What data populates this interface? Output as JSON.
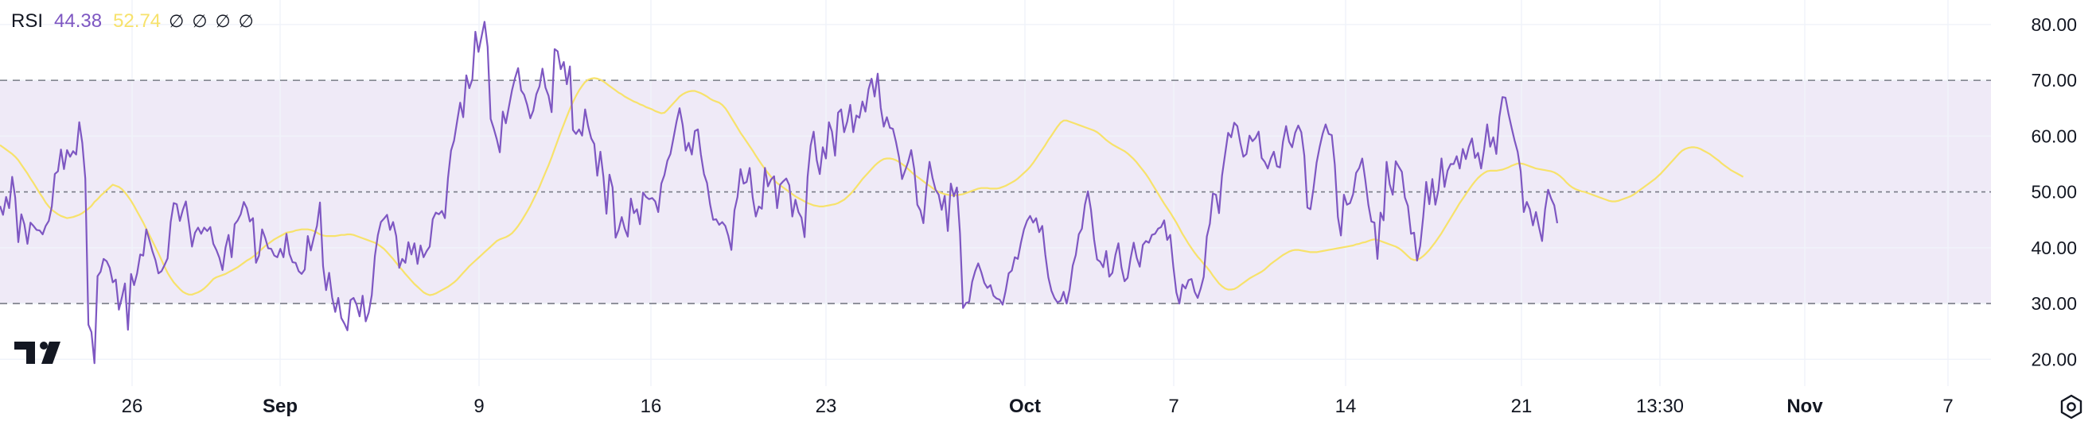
{
  "legend": {
    "name": "RSI",
    "value_rsi": "44.38",
    "value_ma": "52.74",
    "na": [
      "∅",
      "∅",
      "∅",
      "∅"
    ]
  },
  "icons": {
    "logo": "tradingview-logo-icon",
    "settings": "settings-hexagon-icon"
  },
  "colors": {
    "rsi": "#7e57c2",
    "ma": "#f7e26b",
    "band": "#efeaf7",
    "grid": "#f0f3fa",
    "dash": "#787b86",
    "text": "#131722"
  },
  "chart_data": {
    "type": "line",
    "series": [
      {
        "key": "rsi",
        "values": [
          47.5,
          45.9,
          49.1,
          47.1,
          52.7,
          49.0,
          41.0,
          46.0,
          44.2,
          40.7,
          44.5,
          43.9,
          43.2,
          43.1,
          42.4,
          43.9,
          44.8,
          47.4,
          53.2,
          53.7,
          57.6,
          54.1,
          57.5,
          56.3,
          57.3,
          56.7,
          62.5,
          58.8,
          52.4,
          26.2,
          24.9,
          19.3,
          34.9,
          35.7,
          38.0,
          37.6,
          36.4,
          33.8,
          34.3,
          28.9,
          31.1,
          33.6,
          25.3,
          35.3,
          33.3,
          35.4,
          38.8,
          38.6,
          43.3,
          41.4,
          39.4,
          37.8,
          35.4,
          35.8,
          36.9,
          38.1,
          44.6,
          48.0,
          47.8,
          44.8,
          46.8,
          48.3,
          44.4,
          40.2,
          42.7,
          43.6,
          42.5,
          43.6,
          43.0,
          43.7,
          40.7,
          39.6,
          38.2,
          36.0,
          40.0,
          42.3,
          38.3,
          44.2,
          44.9,
          46.0,
          48.2,
          47.1,
          44.7,
          45.3,
          37.3,
          38.6,
          43.3,
          41.8,
          39.9,
          39.8,
          38.6,
          38.3,
          39.8,
          38.3,
          42.5,
          38.9,
          37.4,
          37.3,
          35.8,
          35.3,
          36.1,
          42.1,
          39.5,
          41.9,
          43.9,
          48.1,
          36.7,
          32.4,
          35.5,
          31.1,
          28.5,
          31.0,
          27.4,
          26.4,
          25.2,
          30.6,
          31.0,
          29.8,
          27.7,
          31.4,
          26.8,
          28.4,
          31.5,
          38.5,
          42.3,
          44.6,
          45.2,
          45.9,
          43.2,
          44.6,
          42.1,
          36.4,
          38.0,
          37.3,
          41.0,
          38.8,
          40.8,
          37.1,
          40.4,
          38.3,
          39.4,
          40.2,
          45.1,
          46.3,
          46.0,
          46.6,
          45.3,
          52.5,
          57.4,
          59.2,
          62.7,
          66.0,
          63.4,
          70.9,
          68.6,
          70.2,
          78.7,
          75.1,
          77.8,
          80.5,
          76.0,
          63.1,
          61.4,
          59.5,
          57.1,
          64.4,
          62.3,
          65.3,
          68.2,
          70.4,
          72.2,
          68.2,
          67.4,
          65.6,
          63.2,
          64.6,
          67.5,
          68.9,
          72.1,
          68.7,
          67.2,
          64.3,
          75.6,
          75.2,
          72.0,
          73.3,
          69.3,
          72.5,
          61.1,
          60.4,
          61.2,
          60.1,
          64.8,
          61.8,
          59.6,
          58.6,
          52.9,
          57.2,
          52.7,
          46.1,
          53.1,
          50.8,
          41.8,
          43.2,
          45.5,
          43.4,
          42.0,
          48.8,
          46.2,
          46.9,
          44.2,
          49.9,
          49.1,
          48.7,
          48.9,
          48.3,
          46.4,
          51.5,
          53.0,
          55.6,
          56.8,
          59.7,
          62.6,
          65.0,
          62.0,
          57.4,
          58.8,
          56.7,
          60.9,
          61.2,
          56.7,
          53.2,
          51.6,
          47.8,
          45.0,
          45.1,
          44.1,
          44.6,
          43.9,
          42.1,
          39.6,
          46.7,
          49.1,
          54.1,
          51.5,
          51.8,
          54.3,
          49.0,
          45.6,
          47.4,
          47.0,
          54.3,
          51.0,
          52.2,
          52.8,
          47.1,
          51.3,
          51.9,
          52.4,
          51.2,
          45.6,
          48.6,
          46.4,
          45.4,
          41.9,
          52.7,
          58.3,
          60.8,
          55.7,
          53.2,
          58.0,
          56.0,
          62.5,
          60.8,
          56.5,
          64.2,
          64.8,
          60.7,
          62.6,
          65.6,
          60.7,
          63.7,
          63.3,
          66.2,
          64.4,
          68.4,
          70.3,
          67.1,
          71.2,
          65.1,
          61.7,
          63.4,
          61.5,
          61.3,
          59.0,
          56.2,
          52.3,
          53.8,
          55.4,
          57.5,
          54.1,
          47.7,
          46.7,
          44.4,
          50.8,
          55.4,
          52.5,
          50.4,
          49.5,
          46.8,
          49.3,
          43.0,
          51.5,
          49.2,
          50.8,
          42.6,
          29.2,
          30.1,
          30.3,
          33.9,
          35.8,
          37.2,
          35.6,
          33.7,
          32.8,
          33.3,
          31.4,
          30.9,
          30.7,
          29.8,
          32.3,
          35.4,
          35.9,
          38.3,
          38.0,
          40.9,
          43.3,
          44.8,
          45.7,
          44.5,
          45.3,
          42.8,
          43.9,
          38.8,
          34.7,
          32.3,
          31.0,
          30.2,
          30.5,
          32.1,
          30.0,
          32.5,
          36.8,
          38.7,
          42.4,
          43.4,
          47.7,
          50.1,
          46.8,
          41.5,
          37.9,
          37.5,
          36.5,
          39.4,
          34.8,
          35.5,
          38.7,
          40.8,
          36.5,
          34.0,
          34.6,
          38.1,
          40.9,
          38.2,
          36.6,
          40.5,
          41.2,
          40.9,
          42.3,
          42.5,
          43.4,
          43.7,
          44.9,
          41.4,
          42.3,
          36.6,
          32.0,
          30.0,
          33.4,
          32.7,
          34.2,
          34.4,
          32.1,
          31.0,
          32.7,
          34.8,
          42.0,
          44.3,
          49.7,
          49.5,
          46.2,
          52.9,
          56.8,
          60.6,
          59.8,
          62.4,
          61.8,
          58.8,
          56.3,
          56.8,
          60.1,
          59.1,
          59.7,
          60.8,
          56.1,
          55.4,
          54.2,
          56.0,
          57.2,
          54.6,
          54.4,
          59.0,
          61.8,
          59.0,
          58.0,
          60.6,
          61.9,
          60.7,
          56.5,
          47.2,
          46.9,
          50.6,
          55.2,
          58.0,
          60.4,
          62.1,
          60.4,
          60.2,
          54.9,
          45.5,
          42.2,
          49.5,
          47.7,
          48.0,
          49.6,
          53.4,
          54.3,
          56.0,
          52.2,
          47.7,
          44.7,
          44.5,
          38.0,
          46.3,
          44.9,
          55.4,
          51.4,
          49.5,
          55.5,
          54.5,
          53.6,
          49.0,
          47.5,
          42.5,
          42.7,
          37.7,
          40.3,
          45.5,
          51.8,
          47.8,
          52.3,
          47.7,
          50.3,
          56.0,
          50.9,
          53.8,
          55.0,
          55.0,
          56.4,
          54.2,
          57.7,
          55.9,
          58.1,
          59.6,
          56.1,
          57.0,
          54.2,
          57.7,
          62.1,
          58.1,
          59.8,
          56.8,
          63.4,
          67.0,
          66.9,
          64.0,
          61.5,
          59.2,
          57.2,
          53.7,
          46.4,
          48.2,
          46.9,
          44.0,
          46.4,
          43.7,
          41.2,
          46.9,
          50.4,
          48.8,
          47.6,
          44.4
        ]
      },
      {
        "key": "ma",
        "values": [
          58.4,
          58.0,
          57.6,
          57.2,
          56.8,
          56.3,
          55.7,
          54.9,
          54.1,
          53.3,
          52.4,
          51.6,
          50.7,
          49.8,
          49.0,
          48.1,
          47.4,
          46.8,
          46.4,
          46.0,
          45.7,
          45.5,
          45.3,
          45.4,
          45.5,
          45.7,
          45.9,
          46.2,
          46.6,
          47.0,
          47.5,
          48.2,
          48.7,
          49.3,
          49.8,
          50.3,
          50.8,
          51.3,
          51.1,
          50.9,
          50.5,
          49.9,
          49.2,
          48.4,
          47.5,
          46.5,
          45.5,
          44.5,
          43.4,
          42.3,
          41.2,
          40.1,
          39.0,
          37.8,
          36.6,
          35.5,
          34.6,
          33.8,
          33.2,
          32.6,
          32.1,
          31.8,
          31.6,
          31.6,
          31.8,
          32.0,
          32.3,
          32.7,
          33.2,
          33.8,
          34.4,
          34.7,
          34.9,
          35.1,
          35.3,
          35.6,
          35.9,
          36.2,
          36.5,
          36.9,
          37.3,
          37.7,
          38.0,
          38.4,
          38.8,
          39.3,
          39.8,
          40.3,
          40.7,
          41.1,
          41.5,
          41.8,
          42.1,
          42.4,
          42.7,
          42.8,
          42.9,
          43.1,
          43.2,
          43.3,
          43.3,
          43.3,
          43.2,
          43.0,
          42.7,
          42.4,
          42.2,
          42.1,
          42.1,
          42.1,
          42.1,
          42.2,
          42.3,
          42.3,
          42.4,
          42.4,
          42.3,
          42.1,
          41.9,
          41.7,
          41.5,
          41.3,
          41.1,
          40.9,
          40.6,
          40.2,
          39.8,
          39.2,
          38.6,
          38.0,
          37.3,
          36.6,
          36.0,
          35.3,
          34.7,
          34.1,
          33.5,
          33.0,
          32.5,
          32.0,
          31.7,
          31.5,
          31.6,
          31.8,
          32.1,
          32.4,
          32.7,
          33.0,
          33.4,
          33.8,
          34.3,
          34.9,
          35.5,
          36.1,
          36.7,
          37.2,
          37.7,
          38.2,
          38.7,
          39.2,
          39.7,
          40.2,
          40.7,
          41.2,
          41.5,
          41.7,
          41.9,
          42.2,
          42.6,
          43.2,
          43.9,
          44.7,
          45.6,
          46.5,
          47.5,
          48.6,
          49.7,
          50.9,
          52.2,
          53.5,
          54.8,
          56.2,
          57.7,
          59.2,
          60.7,
          62.1,
          63.5,
          64.9,
          66.1,
          67.2,
          68.2,
          69.0,
          69.7,
          70.1,
          70.3,
          70.4,
          70.3,
          70.1,
          69.8,
          69.4,
          69.0,
          68.6,
          68.2,
          67.8,
          67.5,
          67.1,
          66.8,
          66.5,
          66.2,
          66.0,
          65.7,
          65.5,
          65.2,
          65.0,
          64.8,
          64.5,
          64.3,
          64.1,
          64.2,
          64.7,
          65.3,
          65.9,
          66.5,
          67.1,
          67.5,
          67.8,
          68.0,
          68.1,
          68.1,
          67.9,
          67.7,
          67.4,
          67.1,
          66.7,
          66.4,
          66.2,
          66.0,
          65.6,
          65.0,
          64.2,
          63.3,
          62.4,
          61.5,
          60.6,
          59.8,
          59.0,
          58.2,
          57.4,
          56.5,
          55.7,
          54.9,
          54.1,
          53.4,
          52.7,
          52.1,
          51.6,
          51.2,
          50.8,
          50.4,
          50.0,
          49.6,
          49.2,
          48.9,
          48.6,
          48.3,
          48.0,
          47.8,
          47.6,
          47.5,
          47.4,
          47.4,
          47.5,
          47.6,
          47.7,
          47.8,
          48.0,
          48.3,
          48.6,
          49.1,
          49.6,
          50.2,
          50.9,
          51.6,
          52.3,
          52.9,
          53.5,
          54.1,
          54.7,
          55.2,
          55.6,
          55.9,
          56.0,
          56.0,
          55.9,
          55.7,
          55.4,
          55.0,
          54.6,
          54.1,
          53.6,
          53.1,
          52.7,
          52.3,
          51.9,
          51.5,
          51.1,
          50.7,
          50.3,
          50.0,
          49.8,
          49.6,
          49.5,
          49.4,
          49.4,
          49.4,
          49.5,
          49.6,
          49.8,
          50.0,
          50.2,
          50.4,
          50.6,
          50.7,
          50.7,
          50.7,
          50.6,
          50.6,
          50.6,
          50.7,
          50.9,
          51.1,
          51.4,
          51.7,
          52.0,
          52.4,
          52.9,
          53.4,
          53.9,
          54.5,
          55.2,
          56.0,
          56.8,
          57.6,
          58.4,
          59.3,
          60.1,
          60.9,
          61.7,
          62.4,
          62.8,
          62.8,
          62.6,
          62.4,
          62.2,
          62.0,
          61.8,
          61.6,
          61.4,
          61.2,
          61.0,
          60.7,
          60.3,
          59.8,
          59.3,
          58.9,
          58.5,
          58.2,
          57.9,
          57.6,
          57.3,
          56.9,
          56.4,
          55.9,
          55.3,
          54.6,
          53.9,
          53.2,
          52.4,
          51.5,
          50.6,
          49.7,
          48.8,
          47.9,
          47.1,
          46.3,
          45.4,
          44.5,
          43.5,
          42.5,
          41.6,
          40.7,
          39.9,
          39.1,
          38.4,
          37.8,
          37.1,
          36.5,
          35.8,
          35.0,
          34.3,
          33.6,
          33.1,
          32.7,
          32.5,
          32.5,
          32.6,
          32.9,
          33.3,
          33.7,
          34.1,
          34.5,
          34.8,
          35.1,
          35.4,
          35.7,
          36.1,
          36.6,
          37.1,
          37.5,
          37.9,
          38.3,
          38.7,
          39.0,
          39.3,
          39.5,
          39.6,
          39.6,
          39.5,
          39.4,
          39.3,
          39.2,
          39.2,
          39.2,
          39.3,
          39.4,
          39.5,
          39.6,
          39.7,
          39.8,
          39.9,
          40.0,
          40.1,
          40.2,
          40.3,
          40.4,
          40.6,
          40.7,
          40.9,
          41.0,
          41.2,
          41.4,
          41.5,
          41.4,
          41.2,
          41.0,
          40.8,
          40.6,
          40.4,
          40.2,
          39.9,
          39.5,
          39.0,
          38.5,
          38.0,
          37.8,
          37.8,
          38.1,
          38.5,
          39.0,
          39.6,
          40.3,
          41.0,
          41.8,
          42.6,
          43.5,
          44.4,
          45.3,
          46.2,
          47.1,
          48.0,
          48.8,
          49.6,
          50.4,
          51.2,
          51.9,
          52.5,
          53.0,
          53.4,
          53.7,
          53.8,
          53.8,
          53.8,
          53.9,
          54.0,
          54.2,
          54.4,
          54.7,
          54.9,
          55.1,
          55.1,
          55.0,
          54.8,
          54.6,
          54.4,
          54.2,
          54.1,
          54.0,
          53.9,
          53.8,
          53.7,
          53.5,
          53.2,
          52.8,
          52.3,
          51.7,
          51.2,
          50.8,
          50.5,
          50.3,
          50.1,
          50.0,
          49.8,
          49.6,
          49.4,
          49.2,
          49.0,
          48.8,
          48.6,
          48.4,
          48.3,
          48.3,
          48.4,
          48.6,
          48.8,
          49.0,
          49.2,
          49.5,
          49.9,
          50.3,
          50.7,
          51.1,
          51.5,
          51.9,
          52.3,
          52.8,
          53.3,
          53.9,
          54.5,
          55.1,
          55.7,
          56.3,
          56.9,
          57.4,
          57.7,
          57.9,
          58.0,
          58.0,
          57.9,
          57.7,
          57.4,
          57.1,
          56.8,
          56.4,
          56.0,
          55.6,
          55.1,
          54.7,
          54.3,
          53.9,
          53.6,
          53.3,
          53.0,
          52.7
        ]
      }
    ],
    "y_ticks": [
      "80.00",
      "70.00",
      "60.00",
      "50.00",
      "40.00",
      "30.00",
      "20.00"
    ],
    "ylim": [
      15.2,
      84.4
    ],
    "band": [
      30,
      70
    ],
    "midline": 50,
    "x_ticks": [
      {
        "label": "26",
        "bold": false
      },
      {
        "label": "Sep",
        "bold": true
      },
      {
        "label": "9",
        "bold": false
      },
      {
        "label": "16",
        "bold": false
      },
      {
        "label": "23",
        "bold": false
      },
      {
        "label": "Oct",
        "bold": true
      },
      {
        "label": "7",
        "bold": false
      },
      {
        "label": "14",
        "bold": false
      },
      {
        "label": "21",
        "bold": false
      },
      {
        "label": "13:30",
        "bold": false
      },
      {
        "label": "Nov",
        "bold": true
      },
      {
        "label": "7",
        "bold": false
      }
    ],
    "grid": true
  }
}
